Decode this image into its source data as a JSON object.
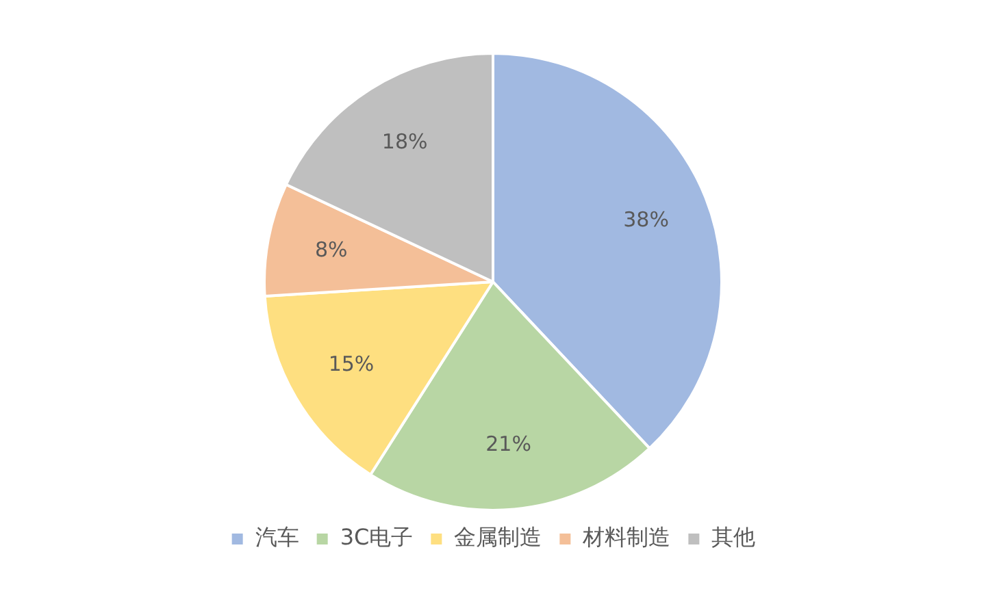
{
  "chart_data": {
    "type": "pie",
    "categories": [
      "汽车",
      "3C电子",
      "金属制造",
      "材料制造",
      "其他"
    ],
    "values": [
      38,
      21,
      15,
      8,
      18
    ],
    "value_labels": [
      "38%",
      "21%",
      "15%",
      "8%",
      "18%"
    ],
    "colors": [
      "#a1b9e1",
      "#b8d6a4",
      "#fedf80",
      "#f4bf98",
      "#bfbfbf"
    ],
    "legend": "bottom"
  }
}
